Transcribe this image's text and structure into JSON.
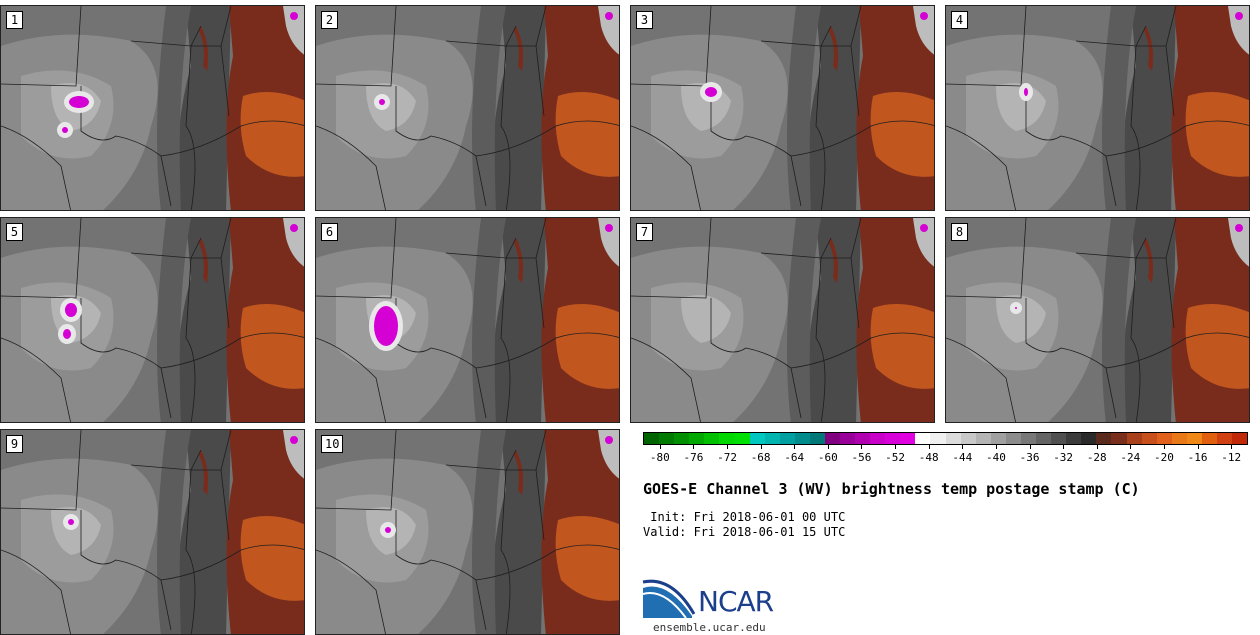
{
  "panels": [
    {
      "label": "1"
    },
    {
      "label": "2"
    },
    {
      "label": "3"
    },
    {
      "label": "4"
    },
    {
      "label": "5"
    },
    {
      "label": "6"
    },
    {
      "label": "7"
    },
    {
      "label": "8"
    },
    {
      "label": "9"
    },
    {
      "label": "10"
    }
  ],
  "colorbar": {
    "tick_labels": [
      "-80",
      "-76",
      "-72",
      "-68",
      "-64",
      "-60",
      "-56",
      "-52",
      "-48",
      "-44",
      "-40",
      "-36",
      "-32",
      "-28",
      "-24",
      "-20",
      "-16",
      "-12"
    ],
    "colors": [
      "#006400",
      "#007a00",
      "#008f00",
      "#00a800",
      "#00c000",
      "#00d800",
      "#00e000",
      "#00c8c0",
      "#00b4b0",
      "#00a0a0",
      "#008c8c",
      "#007878",
      "#800080",
      "#990099",
      "#b000b0",
      "#c800c8",
      "#d800d8",
      "#e000e0",
      "#ffffff",
      "#f0f0f0",
      "#dcdcdc",
      "#c8c8c8",
      "#b4b4b4",
      "#a0a0a0",
      "#8c8c8c",
      "#787878",
      "#646464",
      "#505050",
      "#3c3c3c",
      "#2a2a2a",
      "#5a2a1c",
      "#7a2e1c",
      "#a8401c",
      "#c8501c",
      "#e0601c",
      "#e87818",
      "#f08818",
      "#e06010",
      "#d04010",
      "#c02808"
    ]
  },
  "title": "GOES-E Channel 3 (WV) brightness temp postage stamp (C)",
  "init_line": " Init: Fri 2018-06-01 00 UTC",
  "valid_line": "Valid: Fri 2018-06-01 15 UTC",
  "logo_text": "NCAR",
  "site": "ensemble.ucar.edu",
  "colors": {
    "dry_orange": "#c1561f",
    "dry_brown": "#7a2c1c",
    "moist_magenta": "#d400d4",
    "mid_gray": "#6e6e6e"
  }
}
